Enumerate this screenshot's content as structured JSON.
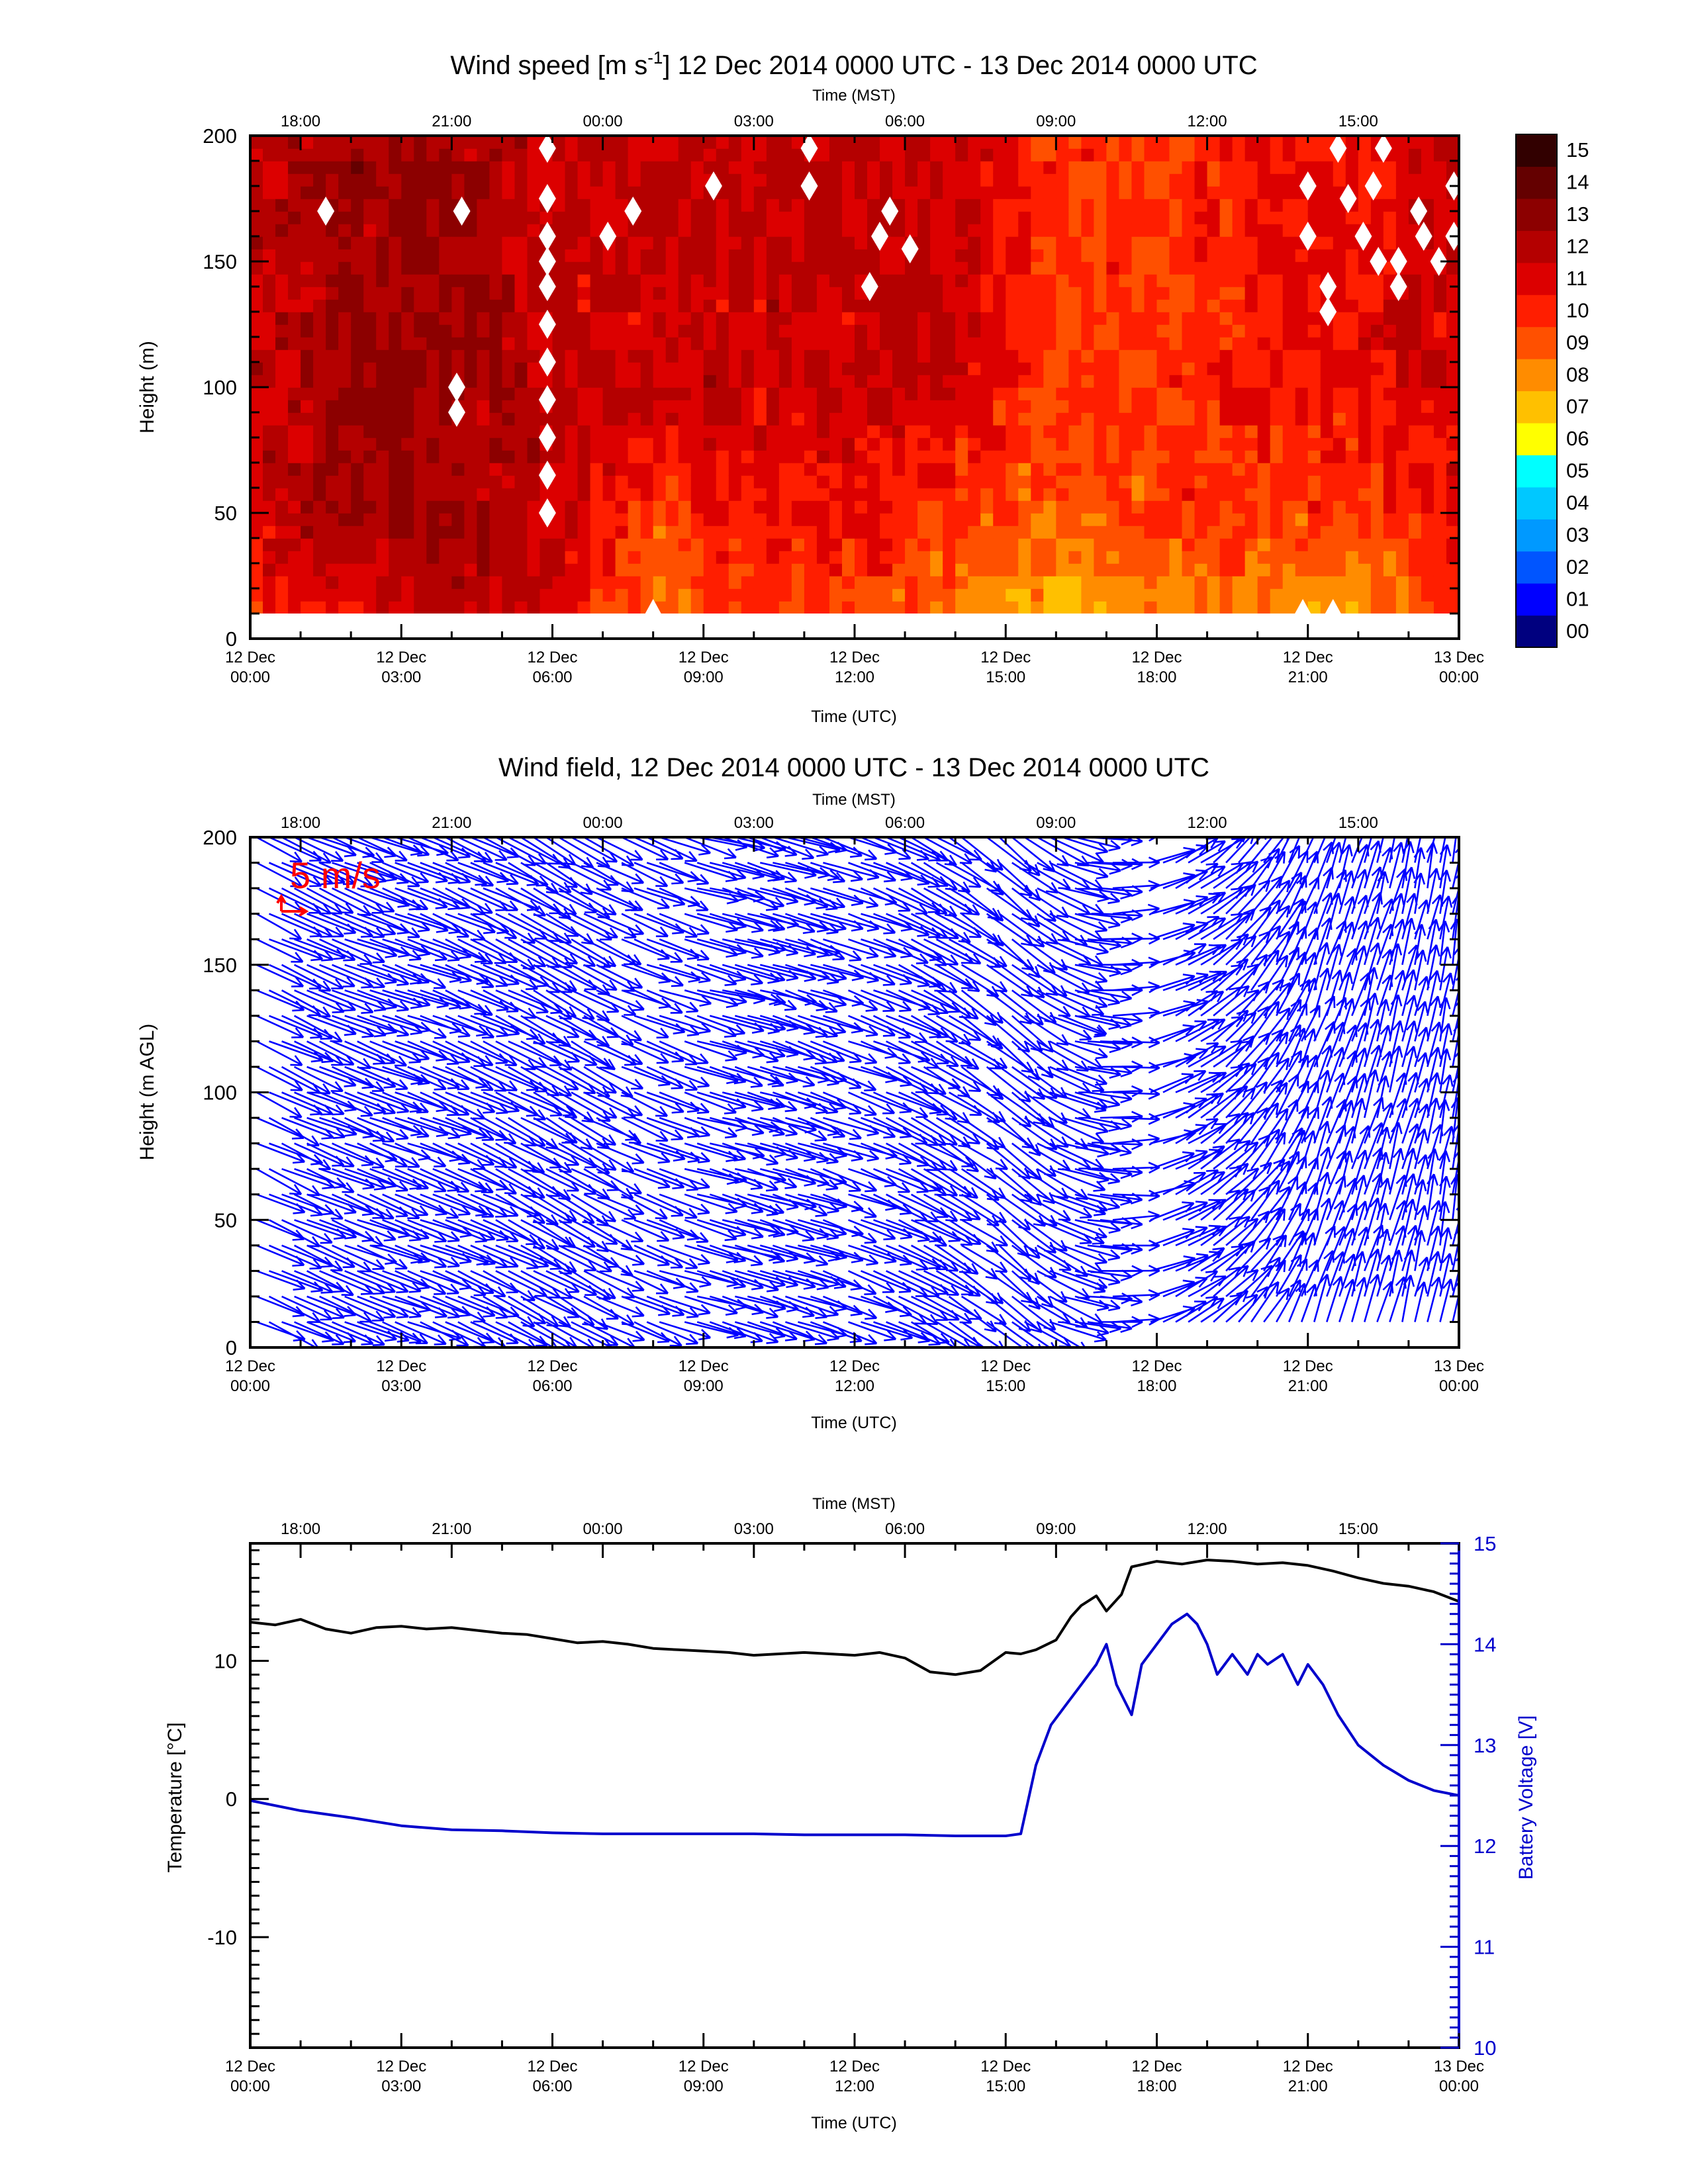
{
  "figure": {
    "panels": 3
  },
  "colors": {
    "axis": "#000000",
    "vector": "#0000ff",
    "reference_vector": "#ff0000",
    "temperature_line": "#000000",
    "voltage_line": "#0000cc",
    "voltage_axis": "#0000cc",
    "missing": "#ffffff"
  },
  "chart_data": [
    {
      "type": "heatmap",
      "title_prefix": "Wind speed [m s",
      "title_superscript": "-1",
      "title_suffix": "] 12 Dec 2014 0000 UTC - 13 Dec 2014 0000 UTC",
      "xlabel": "Time (UTC)",
      "x2label": "Time (MST)",
      "ylabel": "Height (m)",
      "ylim": [
        0,
        200
      ],
      "yticks": [
        "0",
        "50",
        "100",
        "150",
        "200"
      ],
      "xtick_dates": [
        "12 Dec",
        "12 Dec",
        "12 Dec",
        "12 Dec",
        "12 Dec",
        "12 Dec",
        "12 Dec",
        "12 Dec",
        "13 Dec"
      ],
      "xtick_times": [
        "00:00",
        "03:00",
        "06:00",
        "09:00",
        "12:00",
        "15:00",
        "18:00",
        "21:00",
        "00:00"
      ],
      "x2ticks": [
        "18:00",
        "21:00",
        "00:00",
        "03:00",
        "06:00",
        "09:00",
        "12:00",
        "15:00"
      ],
      "data_range_m": [
        10,
        200
      ],
      "colorbar": {
        "labels": [
          "00",
          "01",
          "02",
          "03",
          "04",
          "05",
          "06",
          "07",
          "08",
          "09",
          "10",
          "11",
          "12",
          "13",
          "14",
          "15"
        ],
        "colors": [
          "#00007f",
          "#0000ff",
          "#0055ff",
          "#0099ff",
          "#00c8ff",
          "#00ffff",
          "#ffff00",
          "#ffc000",
          "#ff8c00",
          "#ff5000",
          "#ff1e00",
          "#dc0000",
          "#b40000",
          "#8c0000",
          "#640000",
          "#320000"
        ]
      },
      "speed_by_hour_utc": {
        "hours": [
          0,
          2,
          4,
          6,
          8,
          10,
          12,
          14,
          16,
          18,
          20,
          22,
          24
        ],
        "near_surface_10m": [
          11,
          11,
          12,
          12,
          9,
          10,
          10,
          9,
          8,
          9,
          9,
          8,
          10
        ],
        "level_50m": [
          12,
          13,
          13,
          12,
          10,
          11,
          11,
          10,
          9,
          10,
          10,
          10,
          11
        ],
        "level_100_200m": [
          12,
          13,
          13,
          12,
          12,
          12,
          12,
          12,
          10,
          10,
          11,
          11,
          12
        ]
      }
    },
    {
      "type": "scatter",
      "title": "Wind field, 12 Dec 2014 0000 UTC - 13 Dec 2014 0000 UTC",
      "xlabel": "Time (UTC)",
      "x2label": "Time (MST)",
      "ylabel": "Height (m AGL)",
      "ylim": [
        0,
        200
      ],
      "yticks": [
        "0",
        "50",
        "100",
        "150",
        "200"
      ],
      "xtick_dates": [
        "12 Dec",
        "12 Dec",
        "12 Dec",
        "12 Dec",
        "12 Dec",
        "12 Dec",
        "12 Dec",
        "12 Dec",
        "13 Dec"
      ],
      "xtick_times": [
        "00:00",
        "03:00",
        "06:00",
        "09:00",
        "12:00",
        "15:00",
        "18:00",
        "21:00",
        "00:00"
      ],
      "x2ticks": [
        "18:00",
        "21:00",
        "00:00",
        "03:00",
        "06:00",
        "09:00",
        "12:00",
        "15:00"
      ],
      "reference_vector_label": "5 m/s",
      "reference_vector_speed_ms": 5,
      "vector_heights_m": [
        10,
        20,
        30,
        40,
        50,
        60,
        70,
        80,
        90,
        100,
        110,
        120,
        130,
        140,
        150,
        160,
        170,
        180,
        190,
        200
      ],
      "vector_direction_by_hour_utc": {
        "hours": [
          0,
          3,
          6,
          9,
          12,
          15,
          18,
          21,
          24
        ],
        "wind_direction_deg": [
          295,
          290,
          300,
          285,
          290,
          310,
          250,
          200,
          190
        ]
      }
    },
    {
      "type": "line",
      "xlabel": "Time (UTC)",
      "x2label": "Time (MST)",
      "ylabel": "Temperature [°C]",
      "y2label": "Battery Voltage [V]",
      "ylim": [
        -18,
        18.5
      ],
      "y2lim": [
        10,
        15
      ],
      "yticks": [
        "-10",
        "0",
        "10"
      ],
      "y2ticks": [
        "10",
        "11",
        "12",
        "13",
        "14",
        "15"
      ],
      "xtick_dates": [
        "12 Dec",
        "12 Dec",
        "12 Dec",
        "12 Dec",
        "12 Dec",
        "12 Dec",
        "12 Dec",
        "12 Dec",
        "13 Dec"
      ],
      "xtick_times": [
        "00:00",
        "03:00",
        "06:00",
        "09:00",
        "12:00",
        "15:00",
        "18:00",
        "21:00",
        "00:00"
      ],
      "x2ticks": [
        "18:00",
        "21:00",
        "00:00",
        "03:00",
        "06:00",
        "09:00",
        "12:00",
        "15:00"
      ],
      "series": [
        {
          "x": [
            0,
            0.5,
            1,
            1.5,
            2,
            2.5,
            3,
            3.5,
            4,
            4.5,
            5,
            5.5,
            6,
            6.5,
            7,
            7.5,
            8,
            8.5,
            9,
            9.5,
            10,
            10.5,
            11,
            11.5,
            12,
            12.5,
            13,
            13.5,
            14,
            14.5,
            15,
            15.3,
            15.6,
            16,
            16.3,
            16.5,
            16.8,
            17,
            17.3,
            17.5,
            18,
            18.5,
            19,
            19.5,
            20,
            20.5,
            21,
            21.5,
            22,
            22.5,
            23,
            23.5,
            24
          ],
          "y": [
            12.8,
            12.6,
            13.0,
            12.3,
            12.0,
            12.4,
            12.5,
            12.3,
            12.4,
            12.2,
            12.0,
            11.9,
            11.6,
            11.3,
            11.4,
            11.2,
            10.9,
            10.8,
            10.7,
            10.6,
            10.4,
            10.5,
            10.6,
            10.5,
            10.4,
            10.6,
            10.2,
            9.2,
            9.0,
            9.3,
            10.6,
            10.5,
            10.8,
            11.5,
            13.2,
            14.0,
            14.7,
            13.6,
            14.8,
            16.8,
            17.2,
            17.0,
            17.3,
            17.2,
            17.0,
            17.1,
            16.9,
            16.5,
            16.0,
            15.6,
            15.4,
            15.0,
            14.3
          ]
        },
        {
          "x": [
            0,
            1,
            2,
            3,
            4,
            5,
            6,
            7,
            8,
            9,
            10,
            11,
            12,
            13,
            14,
            15,
            15.3,
            15.6,
            15.9,
            16.2,
            16.5,
            16.8,
            17.0,
            17.2,
            17.5,
            17.7,
            18.0,
            18.3,
            18.6,
            18.8,
            19.0,
            19.2,
            19.5,
            19.8,
            20.0,
            20.2,
            20.5,
            20.8,
            21.0,
            21.3,
            21.6,
            22.0,
            22.5,
            23.0,
            23.5,
            24
          ],
          "y": [
            12.45,
            12.35,
            12.28,
            12.2,
            12.16,
            12.15,
            12.13,
            12.12,
            12.12,
            12.12,
            12.12,
            12.11,
            12.11,
            12.11,
            12.1,
            12.1,
            12.12,
            12.8,
            13.2,
            13.4,
            13.6,
            13.8,
            14.0,
            13.6,
            13.3,
            13.8,
            14.0,
            14.2,
            14.3,
            14.2,
            14.0,
            13.7,
            13.9,
            13.7,
            13.9,
            13.8,
            13.9,
            13.6,
            13.8,
            13.6,
            13.3,
            13.0,
            12.8,
            12.65,
            12.55,
            12.5
          ]
        }
      ]
    }
  ]
}
